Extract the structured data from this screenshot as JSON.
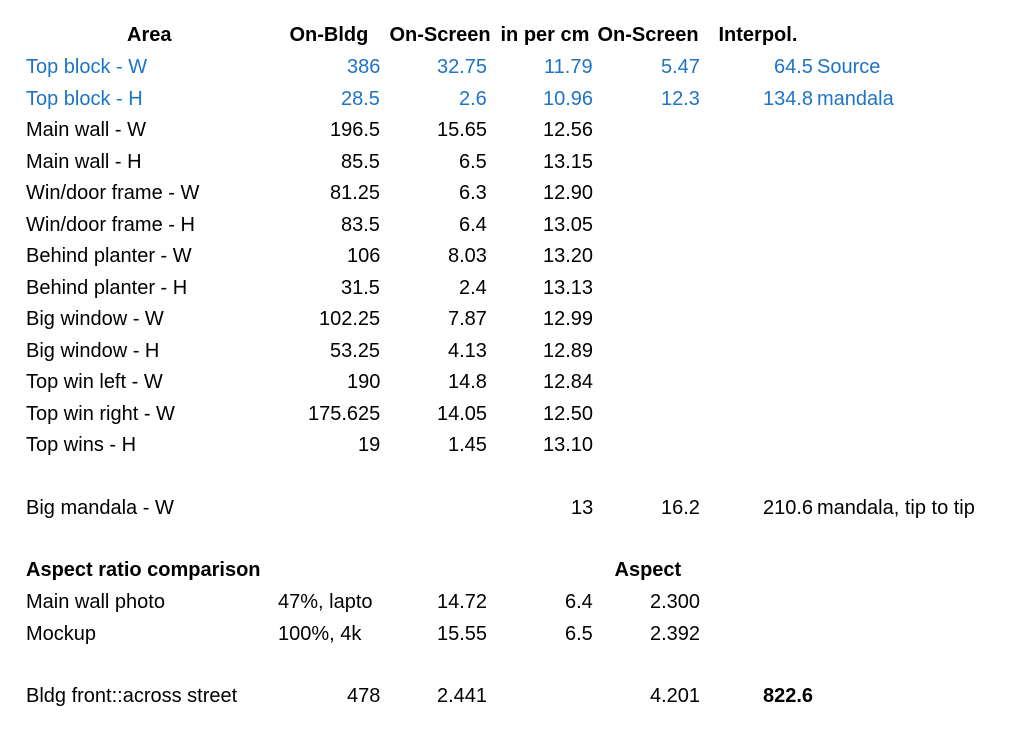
{
  "table": {
    "header": [
      "Area",
      "On-Bldg",
      "On-Screen",
      "in per cm",
      "On-Screen",
      "Interpol.",
      null
    ],
    "rows": [
      [
        "Top block - W",
        "386",
        "32.75",
        "11.79",
        "5.47",
        "64.5",
        "Source"
      ],
      [
        "Top block - H",
        "28.5",
        "2.6",
        "10.96",
        "12.3",
        "134.8",
        "mandala"
      ],
      [
        "Main wall - W",
        "196.5",
        "15.65",
        "12.56",
        null,
        null,
        null
      ],
      [
        "Main wall - H",
        "85.5",
        "6.5",
        "13.15",
        null,
        null,
        null
      ],
      [
        "Win/door frame - W",
        "81.25",
        "6.3",
        "12.90",
        null,
        null,
        null
      ],
      [
        "Win/door frame - H",
        "83.5",
        "6.4",
        "13.05",
        null,
        null,
        null
      ],
      [
        "Behind planter - W",
        "106",
        "8.03",
        "13.20",
        null,
        null,
        null
      ],
      [
        "Behind planter - H",
        "31.5",
        "2.4",
        "13.13",
        null,
        null,
        null
      ],
      [
        "Big window - W",
        "102.25",
        "7.87",
        "12.99",
        null,
        null,
        null
      ],
      [
        "Big window - H",
        "53.25",
        "4.13",
        "12.89",
        null,
        null,
        null
      ],
      [
        "Top win left - W",
        "190",
        "14.8",
        "12.84",
        null,
        null,
        null
      ],
      [
        "Top win right - W",
        "175.625",
        "14.05",
        "12.50",
        null,
        null,
        null
      ],
      [
        "Top wins - H",
        "19",
        "1.45",
        "13.10",
        null,
        null,
        null
      ]
    ],
    "mandala_row": [
      "Big mandala - W",
      null,
      null,
      "13",
      "16.2",
      "210.6",
      "mandala, tip to tip"
    ],
    "aspect": {
      "header": [
        "Aspect ratio comparison",
        null,
        null,
        null,
        "Aspect",
        null,
        null
      ],
      "rows": [
        [
          "Main wall photo",
          "47%, lapto",
          "14.72",
          "6.4",
          "2.300",
          null,
          null
        ],
        [
          "Mockup",
          "100%, 4k",
          "15.55",
          "6.5",
          "2.392",
          null,
          null
        ]
      ]
    },
    "bldg_row": [
      "Bldg front::across street",
      "478",
      "2.441",
      null,
      "4.201",
      "822.6",
      null
    ]
  }
}
